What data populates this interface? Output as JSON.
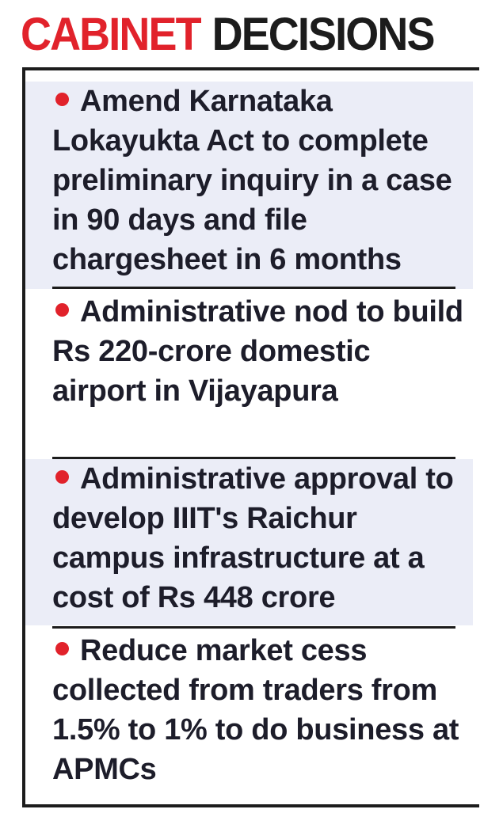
{
  "header": {
    "title_red": "CABINET",
    "title_black": "DECISIONS"
  },
  "colors": {
    "accent_red": "#e1222b",
    "text": "#1d1d2a",
    "shade": "#ebedf7"
  },
  "decisions": [
    {
      "text": "Amend Karnataka Lokayukta Act to complete preliminary inquiry in a case in 90 days and file chargesheet in 6 months"
    },
    {
      "text": "Administrative nod to build Rs 220-crore domestic airport in Vijayapura"
    },
    {
      "text": "Administrative approval to develop IIIT's Raichur campus infrastructure at a cost of Rs 448 crore"
    },
    {
      "text": "Reduce market cess collected from traders from 1.5% to 1% to do business at APMCs"
    }
  ]
}
